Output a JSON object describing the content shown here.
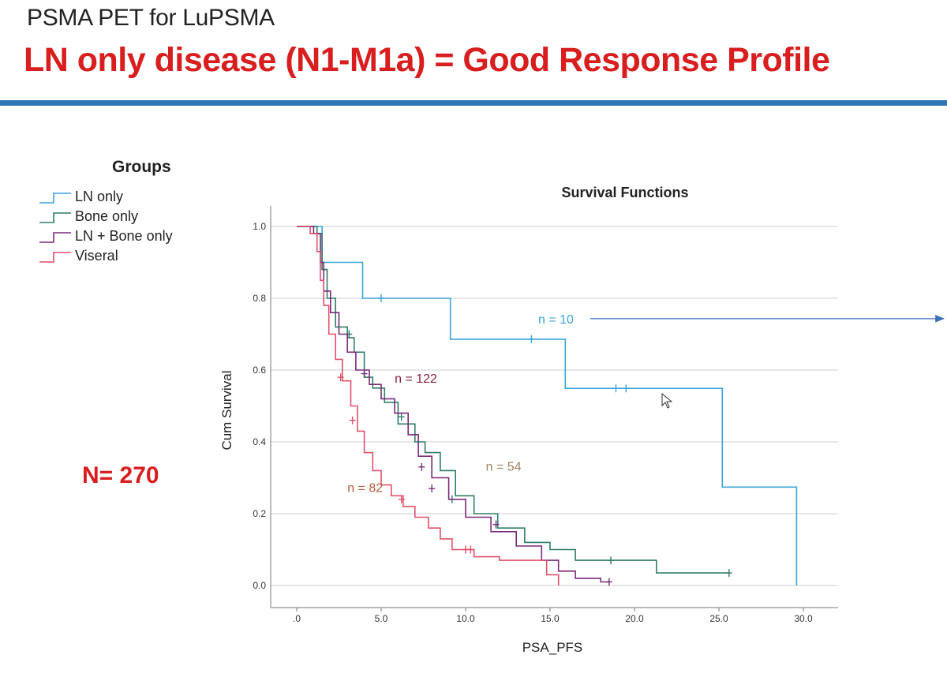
{
  "slide": {
    "subtitle": "PSMA PET for LuPSMA",
    "title": "LN only disease (N1-M1a) = Good Response Profile",
    "total_n": "N= 270",
    "accent_color": "#d81e1e",
    "rule_color": "#2e75b6"
  },
  "legend": {
    "title": "Groups",
    "items": [
      {
        "label": "LN only",
        "color": "#3ba4d8"
      },
      {
        "label": "Bone only",
        "color": "#2e7d6a"
      },
      {
        "label": "LN + Bone only",
        "color": "#7a2a7a"
      },
      {
        "label": "Viseral",
        "color": "#e0506a"
      }
    ]
  },
  "chart_data": {
    "type": "line",
    "subtype": "kaplan-meier-step",
    "title": "Survival Functions",
    "xlabel": "PSA_PFS",
    "ylabel": "Cum Survival",
    "xlim": [
      0,
      30
    ],
    "ylim": [
      0,
      1
    ],
    "xticks": [
      ".0",
      "5.0",
      "10.0",
      "15.0",
      "20.0",
      "25.0",
      "30.0"
    ],
    "yticks": [
      "0.0",
      "0.2",
      "0.4",
      "0.6",
      "0.8",
      "1.0"
    ],
    "grid": true,
    "series": [
      {
        "name": "LN only",
        "color": "#3ba4d8",
        "steps": [
          [
            0,
            1.0
          ],
          [
            1.5,
            1.0
          ],
          [
            1.5,
            0.9
          ],
          [
            3.9,
            0.9
          ],
          [
            3.9,
            0.8
          ],
          [
            9.1,
            0.8
          ],
          [
            9.1,
            0.686
          ],
          [
            15.9,
            0.686
          ],
          [
            15.9,
            0.549
          ],
          [
            25.2,
            0.549
          ],
          [
            25.2,
            0.274
          ],
          [
            29.6,
            0.274
          ],
          [
            29.6,
            0.0
          ]
        ],
        "censored": [
          [
            5.0,
            0.8
          ],
          [
            13.9,
            0.686
          ],
          [
            18.9,
            0.549
          ],
          [
            19.5,
            0.549
          ]
        ]
      },
      {
        "name": "Bone only",
        "color": "#2e7d6a",
        "steps": [
          [
            0,
            1.0
          ],
          [
            1.2,
            1.0
          ],
          [
            1.2,
            0.98
          ],
          [
            1.5,
            0.98
          ],
          [
            1.5,
            0.88
          ],
          [
            1.8,
            0.88
          ],
          [
            1.8,
            0.8
          ],
          [
            2.3,
            0.8
          ],
          [
            2.3,
            0.72
          ],
          [
            3.0,
            0.72
          ],
          [
            3.0,
            0.69
          ],
          [
            3.4,
            0.69
          ],
          [
            3.4,
            0.65
          ],
          [
            4.0,
            0.65
          ],
          [
            4.0,
            0.58
          ],
          [
            4.5,
            0.58
          ],
          [
            4.5,
            0.55
          ],
          [
            5.2,
            0.55
          ],
          [
            5.2,
            0.51
          ],
          [
            6.0,
            0.51
          ],
          [
            6.0,
            0.45
          ],
          [
            7.0,
            0.45
          ],
          [
            7.0,
            0.4
          ],
          [
            7.6,
            0.4
          ],
          [
            7.6,
            0.37
          ],
          [
            8.5,
            0.37
          ],
          [
            8.5,
            0.32
          ],
          [
            9.4,
            0.32
          ],
          [
            9.4,
            0.25
          ],
          [
            10.5,
            0.25
          ],
          [
            10.5,
            0.2
          ],
          [
            11.9,
            0.2
          ],
          [
            11.9,
            0.16
          ],
          [
            13.5,
            0.16
          ],
          [
            13.5,
            0.12
          ],
          [
            15.0,
            0.12
          ],
          [
            15.0,
            0.1
          ],
          [
            16.5,
            0.1
          ],
          [
            16.5,
            0.07
          ],
          [
            21.3,
            0.07
          ],
          [
            21.3,
            0.035
          ],
          [
            25.6,
            0.035
          ]
        ],
        "censored": [
          [
            3.1,
            0.7
          ],
          [
            6.2,
            0.47
          ],
          [
            9.2,
            0.24
          ],
          [
            18.6,
            0.07
          ],
          [
            25.6,
            0.035
          ]
        ]
      },
      {
        "name": "LN + Bone only",
        "color": "#7a2a7a",
        "steps": [
          [
            0,
            1.0
          ],
          [
            1.0,
            1.0
          ],
          [
            1.0,
            0.98
          ],
          [
            1.4,
            0.98
          ],
          [
            1.4,
            0.9
          ],
          [
            1.6,
            0.9
          ],
          [
            1.6,
            0.82
          ],
          [
            2.0,
            0.82
          ],
          [
            2.0,
            0.76
          ],
          [
            2.5,
            0.76
          ],
          [
            2.5,
            0.7
          ],
          [
            3.0,
            0.7
          ],
          [
            3.0,
            0.65
          ],
          [
            3.5,
            0.65
          ],
          [
            3.5,
            0.6
          ],
          [
            4.3,
            0.6
          ],
          [
            4.3,
            0.56
          ],
          [
            5.0,
            0.56
          ],
          [
            5.0,
            0.52
          ],
          [
            5.8,
            0.52
          ],
          [
            5.8,
            0.48
          ],
          [
            6.6,
            0.48
          ],
          [
            6.6,
            0.42
          ],
          [
            7.2,
            0.42
          ],
          [
            7.2,
            0.36
          ],
          [
            8.0,
            0.36
          ],
          [
            8.0,
            0.3
          ],
          [
            9.0,
            0.3
          ],
          [
            9.0,
            0.24
          ],
          [
            10.0,
            0.24
          ],
          [
            10.0,
            0.19
          ],
          [
            11.5,
            0.19
          ],
          [
            11.5,
            0.15
          ],
          [
            13.0,
            0.15
          ],
          [
            13.0,
            0.11
          ],
          [
            14.5,
            0.11
          ],
          [
            14.5,
            0.07
          ],
          [
            15.5,
            0.07
          ],
          [
            15.5,
            0.04
          ],
          [
            16.5,
            0.04
          ],
          [
            16.5,
            0.02
          ],
          [
            18.0,
            0.02
          ],
          [
            18.0,
            0.01
          ],
          [
            18.5,
            0.01
          ]
        ],
        "censored": [
          [
            4.0,
            0.59
          ],
          [
            7.4,
            0.33
          ],
          [
            8.0,
            0.27
          ],
          [
            11.8,
            0.17
          ],
          [
            18.5,
            0.01
          ]
        ]
      },
      {
        "name": "Viseral",
        "color": "#e0506a",
        "steps": [
          [
            0,
            1.0
          ],
          [
            0.8,
            1.0
          ],
          [
            0.8,
            0.98
          ],
          [
            1.2,
            0.98
          ],
          [
            1.2,
            0.93
          ],
          [
            1.4,
            0.93
          ],
          [
            1.4,
            0.85
          ],
          [
            1.6,
            0.85
          ],
          [
            1.6,
            0.78
          ],
          [
            1.9,
            0.78
          ],
          [
            1.9,
            0.7
          ],
          [
            2.3,
            0.7
          ],
          [
            2.3,
            0.63
          ],
          [
            2.7,
            0.63
          ],
          [
            2.7,
            0.57
          ],
          [
            3.2,
            0.57
          ],
          [
            3.2,
            0.5
          ],
          [
            3.6,
            0.5
          ],
          [
            3.6,
            0.43
          ],
          [
            4.0,
            0.43
          ],
          [
            4.0,
            0.37
          ],
          [
            4.5,
            0.37
          ],
          [
            4.5,
            0.32
          ],
          [
            5.0,
            0.32
          ],
          [
            5.0,
            0.28
          ],
          [
            5.6,
            0.28
          ],
          [
            5.6,
            0.25
          ],
          [
            6.3,
            0.25
          ],
          [
            6.3,
            0.22
          ],
          [
            7.0,
            0.22
          ],
          [
            7.0,
            0.19
          ],
          [
            7.8,
            0.19
          ],
          [
            7.8,
            0.16
          ],
          [
            8.5,
            0.16
          ],
          [
            8.5,
            0.13
          ],
          [
            9.2,
            0.13
          ],
          [
            9.2,
            0.1
          ],
          [
            10.5,
            0.1
          ],
          [
            10.5,
            0.08
          ],
          [
            12.0,
            0.08
          ],
          [
            12.0,
            0.07
          ],
          [
            14.8,
            0.07
          ],
          [
            14.8,
            0.03
          ],
          [
            15.5,
            0.03
          ],
          [
            15.5,
            0.0
          ]
        ],
        "censored": [
          [
            2.6,
            0.58
          ],
          [
            3.3,
            0.46
          ],
          [
            6.2,
            0.24
          ],
          [
            10.0,
            0.1
          ],
          [
            10.3,
            0.1
          ]
        ]
      }
    ],
    "annotations": [
      {
        "text": "n = 10",
        "x": 14.3,
        "y": 0.73,
        "color": "#3ba4d8",
        "arrow": true
      },
      {
        "text": "n = 122",
        "x": 5.8,
        "y": 0.565,
        "color": "#8b1f3a",
        "arrow": false
      },
      {
        "text": "n = 54",
        "x": 11.2,
        "y": 0.32,
        "color": "#a08060",
        "arrow": false
      },
      {
        "text": "n = 82",
        "x": 3.0,
        "y": 0.26,
        "color": "#b35a3a",
        "arrow": false
      }
    ]
  }
}
